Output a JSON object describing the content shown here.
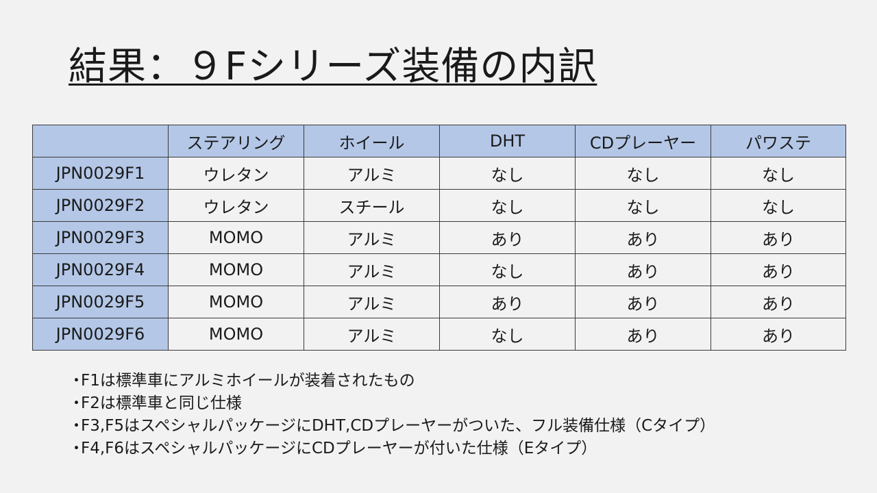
{
  "slide": {
    "title": "結果：９Fシリーズ装備の内訳"
  },
  "table": {
    "corner": "",
    "columns": [
      "ステアリング",
      "ホイール",
      "DHT",
      "CDプレーヤー",
      "パワステ"
    ],
    "rows": [
      {
        "id": "JPN0029F1",
        "cells": [
          "ウレタン",
          "アルミ",
          "なし",
          "なし",
          "なし"
        ]
      },
      {
        "id": "JPN0029F2",
        "cells": [
          "ウレタン",
          "スチール",
          "なし",
          "なし",
          "なし"
        ]
      },
      {
        "id": "JPN0029F3",
        "cells": [
          "MOMO",
          "アルミ",
          "あり",
          "あり",
          "あり"
        ]
      },
      {
        "id": "JPN0029F4",
        "cells": [
          "MOMO",
          "アルミ",
          "なし",
          "あり",
          "あり"
        ]
      },
      {
        "id": "JPN0029F5",
        "cells": [
          "MOMO",
          "アルミ",
          "あり",
          "あり",
          "あり"
        ]
      },
      {
        "id": "JPN0029F6",
        "cells": [
          "MOMO",
          "アルミ",
          "なし",
          "あり",
          "あり"
        ]
      }
    ]
  },
  "notes": {
    "bullet": "・",
    "items": [
      "F1は標準車にアルミホイールが装着されたもの",
      "F2は標準車と同じ仕様",
      "F3,F5はスペシャルパッケージにDHT,CDプレーヤーがついた、フル装備仕様（Cタイプ）",
      "F4,F6はスペシャルパッケージにCDプレーヤーが付いた仕様（Eタイプ）"
    ]
  },
  "colors": {
    "background": "#f2f2f2",
    "header_fill": "#b4c7e7",
    "border": "#3a3a3a",
    "text": "#1a1a1a"
  }
}
